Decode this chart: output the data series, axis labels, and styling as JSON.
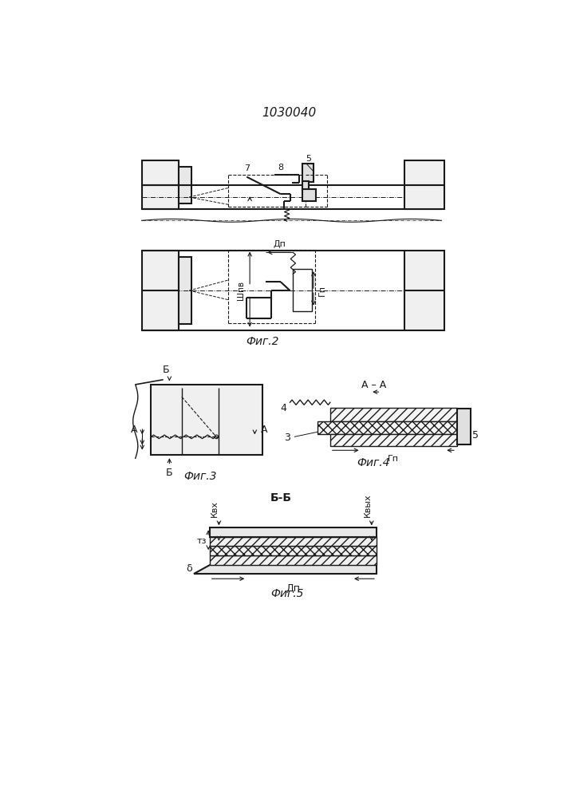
{
  "title": "1030040",
  "fig2_label": "Фиг.2",
  "fig3_label": "Фиг.3",
  "fig4_label": "Фиг.4",
  "fig5_label": "Фиг.5",
  "line_color": "#1a1a1a",
  "label_7": "7",
  "label_8": "8",
  "label_5": "5",
  "label_3": "3",
  "label_4": "4",
  "label_Dp": "Дп",
  "label_Shpv": "Шпв",
  "label_Gp": "Гп",
  "label_Kvkh": "Квх",
  "label_Kvykh": "Квых",
  "label_ts": "тз",
  "label_delta": "δ",
  "label_AA": "A – A",
  "label_BB": "Б-Б",
  "label_A": "A",
  "label_B": "Б"
}
